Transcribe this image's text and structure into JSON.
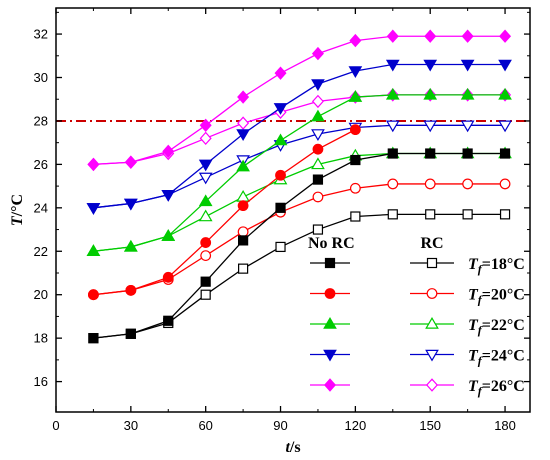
{
  "chart_data": {
    "type": "line",
    "xlabel_main": "t",
    "xlabel_unit": "/s",
    "ylabel_main": "T",
    "ylabel_unit": "/°C",
    "xlim": [
      0,
      190
    ],
    "ylim": [
      14.6,
      33.2
    ],
    "xticks": [
      0,
      30,
      60,
      90,
      120,
      150,
      180
    ],
    "yticks": [
      16,
      18,
      20,
      22,
      24,
      26,
      28,
      30,
      32
    ],
    "grid": false,
    "legend_position": "bottom-right",
    "threshold": {
      "y": 28,
      "color": "#cc0000",
      "style": "dash-dot"
    },
    "legend_headers": {
      "no_rc": "No RC",
      "rc": "RC"
    },
    "x": [
      15,
      30,
      45,
      60,
      75,
      90,
      105,
      120,
      135,
      150,
      165,
      180
    ],
    "groups": [
      {
        "label_base": "T",
        "label_sub": "f",
        "label_value": "=18°C",
        "color": "#000000",
        "marker": "square",
        "no_rc": [
          18.0,
          18.2,
          18.8,
          20.6,
          22.5,
          24.0,
          25.3,
          26.2,
          26.5,
          26.5,
          26.5,
          26.5
        ],
        "rc": [
          18.0,
          18.2,
          18.7,
          20.0,
          21.2,
          22.2,
          23.0,
          23.6,
          23.7,
          23.7,
          23.7,
          23.7
        ]
      },
      {
        "label_base": "T",
        "label_sub": "f",
        "label_value": "=20°C",
        "color": "#ff0000",
        "marker": "circle",
        "no_rc": [
          20.0,
          20.2,
          20.8,
          22.4,
          24.1,
          25.5,
          26.7,
          27.6,
          null,
          null,
          null,
          null
        ],
        "rc": [
          20.0,
          20.2,
          20.7,
          21.8,
          22.9,
          23.8,
          24.5,
          24.9,
          25.1,
          25.1,
          25.1,
          25.1
        ]
      },
      {
        "label_base": "T",
        "label_sub": "f",
        "label_value": "=22°C",
        "color": "#00cc00",
        "marker": "triangle-up",
        "no_rc": [
          22.0,
          22.2,
          22.7,
          24.3,
          25.9,
          27.1,
          28.2,
          29.1,
          29.2,
          29.2,
          29.2,
          29.2
        ],
        "rc": [
          22.0,
          22.2,
          22.7,
          23.6,
          24.5,
          25.3,
          26.0,
          26.4,
          26.5,
          26.5,
          26.5,
          26.5
        ]
      },
      {
        "label_base": "T",
        "label_sub": "f",
        "label_value": "=24°C",
        "color": "#0000cc",
        "marker": "triangle-down",
        "no_rc": [
          24.0,
          24.2,
          24.6,
          26.0,
          27.4,
          28.6,
          29.7,
          30.3,
          30.6,
          30.6,
          30.6,
          30.6
        ],
        "rc": [
          24.0,
          24.2,
          24.6,
          25.4,
          26.2,
          26.9,
          27.4,
          27.7,
          27.8,
          27.8,
          27.8,
          27.8
        ]
      },
      {
        "label_base": "T",
        "label_sub": "f",
        "label_value": "=26°C",
        "color": "#ff00ff",
        "marker": "diamond",
        "no_rc": [
          26.0,
          26.1,
          26.6,
          27.8,
          29.1,
          30.2,
          31.1,
          31.7,
          31.9,
          31.9,
          31.9,
          31.9
        ],
        "rc": [
          26.0,
          26.1,
          26.5,
          27.2,
          27.9,
          28.4,
          28.9,
          29.1,
          29.2,
          29.2,
          29.2,
          29.2
        ]
      }
    ]
  }
}
